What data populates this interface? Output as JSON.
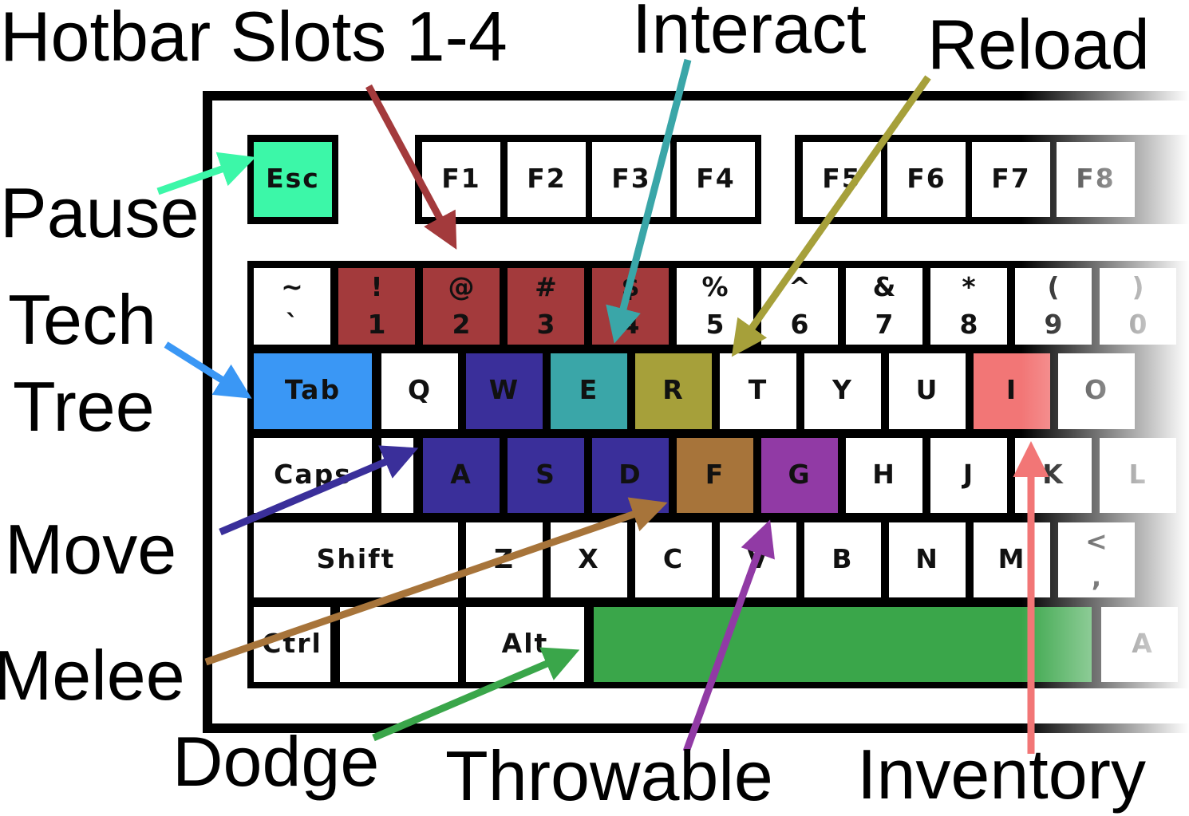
{
  "colors": {
    "frame": "#000000",
    "key": "#ffffff",
    "hotbar": "#a33a3c",
    "move": "#3a2f9a",
    "interact": "#3aa6a8",
    "reload": "#a6a03a",
    "tech_tree": "#3a97f5",
    "pause": "#3cf7a8",
    "inventory": "#f27676",
    "melee": "#a7743a",
    "throwable": "#913aa5",
    "dodge": "#3aa64a"
  },
  "function_keys": [
    "Esc",
    "F1",
    "F2",
    "F3",
    "F4",
    "F5",
    "F6",
    "F7",
    "F8"
  ],
  "number_row": [
    {
      "top": "~",
      "bottom": "`"
    },
    {
      "top": "!",
      "bottom": "1"
    },
    {
      "top": "@",
      "bottom": "2"
    },
    {
      "top": "#",
      "bottom": "3"
    },
    {
      "top": "$",
      "bottom": "4"
    },
    {
      "top": "%",
      "bottom": "5"
    },
    {
      "top": "^",
      "bottom": "6"
    },
    {
      "top": "&",
      "bottom": "7"
    },
    {
      "top": "*",
      "bottom": "8"
    },
    {
      "top": "(",
      "bottom": "9"
    },
    {
      "top": ")",
      "bottom": "0"
    }
  ],
  "qwerty_row": [
    "Tab",
    "Q",
    "W",
    "E",
    "R",
    "T",
    "Y",
    "U",
    "I",
    "O"
  ],
  "home_row": [
    "Caps",
    "A",
    "S",
    "D",
    "F",
    "G",
    "H",
    "J",
    "K",
    "L"
  ],
  "shift_row": [
    "Shift",
    "Z",
    "X",
    "C",
    "V",
    "B",
    "N",
    "M",
    "<",
    ","
  ],
  "bottom_row": [
    "Ctrl",
    "Alt",
    "A"
  ],
  "callouts": {
    "hotbar": "Hotbar Slots 1-4",
    "interact": "Interact",
    "reload": "Reload",
    "pause": "Pause",
    "tech_line1": "Tech",
    "tech_line2": "Tree",
    "move": "Move",
    "melee": "Melee",
    "dodge": "Dodge",
    "throwable": "Throwable",
    "inventory": "Inventory"
  }
}
